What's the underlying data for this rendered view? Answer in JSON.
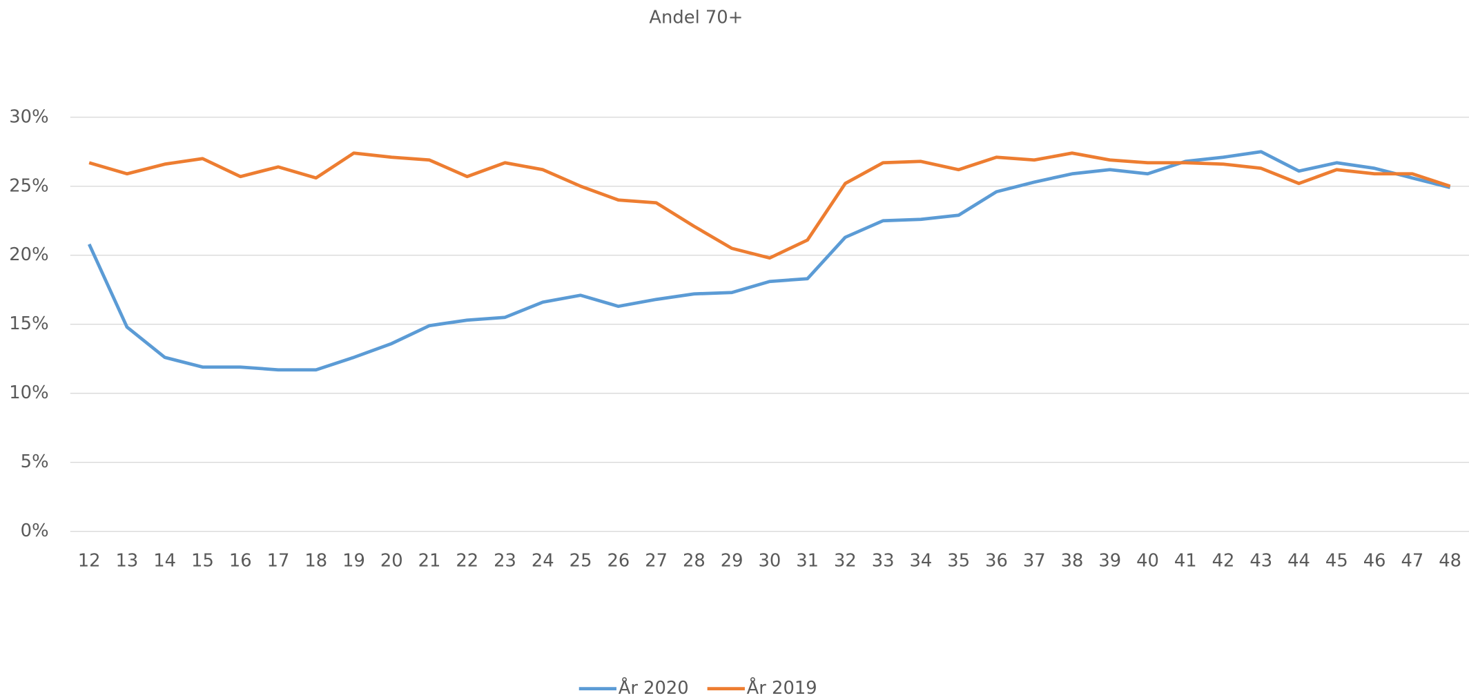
{
  "chart_data": {
    "type": "line",
    "title": "Andel 70+",
    "categories": [
      "12",
      "13",
      "14",
      "15",
      "16",
      "17",
      "18",
      "19",
      "20",
      "21",
      "22",
      "23",
      "24",
      "25",
      "26",
      "27",
      "28",
      "29",
      "30",
      "31",
      "32",
      "33",
      "34",
      "35",
      "36",
      "37",
      "38",
      "39",
      "40",
      "41",
      "42",
      "43",
      "44",
      "45",
      "46",
      "47",
      "48"
    ],
    "series": [
      {
        "name": "År 2020",
        "color": "#5b9bd5",
        "values": [
          20.8,
          14.8,
          12.6,
          11.9,
          11.9,
          11.7,
          11.7,
          12.6,
          13.6,
          14.9,
          15.3,
          15.5,
          16.6,
          17.1,
          16.3,
          16.8,
          17.2,
          17.3,
          18.1,
          18.3,
          21.3,
          22.5,
          22.6,
          22.9,
          24.6,
          25.3,
          25.9,
          26.2,
          25.9,
          26.8,
          27.1,
          27.5,
          26.1,
          26.7,
          26.3,
          25.6,
          24.9
        ]
      },
      {
        "name": "År 2019",
        "color": "#ed7d31",
        "values": [
          26.7,
          25.9,
          26.6,
          27.0,
          25.7,
          26.4,
          25.6,
          27.4,
          27.1,
          26.9,
          25.7,
          26.7,
          26.2,
          25.0,
          24.0,
          23.8,
          22.1,
          20.5,
          19.8,
          21.1,
          25.2,
          26.7,
          26.8,
          26.2,
          27.1,
          26.9,
          27.4,
          26.9,
          26.7,
          26.7,
          26.6,
          26.3,
          25.2,
          26.2,
          25.9,
          25.9,
          25.0
        ]
      }
    ],
    "ylim": [
      0,
      30
    ],
    "yticks": [
      {
        "value": 0,
        "label": "0%"
      },
      {
        "value": 5,
        "label": "5%"
      },
      {
        "value": 10,
        "label": "10%"
      },
      {
        "value": 15,
        "label": "15%"
      },
      {
        "value": 20,
        "label": "20%"
      },
      {
        "value": 25,
        "label": "25%"
      },
      {
        "value": 30,
        "label": "30%"
      }
    ],
    "grid": true,
    "legend": "bottom"
  }
}
